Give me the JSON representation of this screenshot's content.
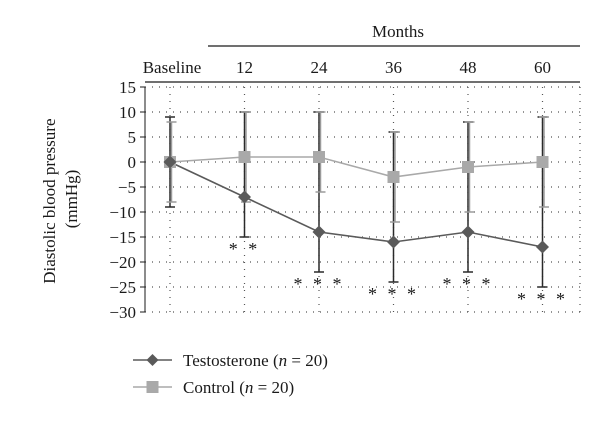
{
  "chart_data": {
    "type": "line",
    "ylabel": "Diastolic blood pressure (mmHg)",
    "xlabel": "",
    "header_label": "Months",
    "categories": [
      "Baseline",
      "12",
      "24",
      "36",
      "48",
      "60"
    ],
    "ylim": [
      -30,
      15
    ],
    "yticks": [
      15,
      10,
      5,
      0,
      -5,
      -10,
      -15,
      -20,
      -25,
      -30
    ],
    "grid": "dotted horizontal and vertical",
    "legend_position": "bottom-left",
    "series": [
      {
        "name": "Testosterone",
        "n_label": "20",
        "color": "#5a5a5a",
        "marker": "diamond",
        "values": [
          0,
          -7,
          -14,
          -16,
          -14,
          -17
        ],
        "error_upper": [
          9,
          10,
          10,
          6,
          8,
          9
        ],
        "error_lower": [
          -9,
          -15,
          -22,
          -24,
          -22,
          -25
        ],
        "significance": [
          "",
          "**",
          "***",
          "***",
          "***",
          "***"
        ]
      },
      {
        "name": "Control",
        "n_label": "20",
        "color": "#a9a9a9",
        "marker": "square",
        "values": [
          0,
          1,
          1,
          -3,
          -1,
          0
        ],
        "error_upper": [
          8,
          10,
          10,
          6,
          8,
          9
        ],
        "error_lower": [
          -8,
          -8,
          -6,
          -12,
          -10,
          -9
        ],
        "significance": [
          "",
          "",
          "",
          "",
          "",
          ""
        ]
      }
    ]
  }
}
